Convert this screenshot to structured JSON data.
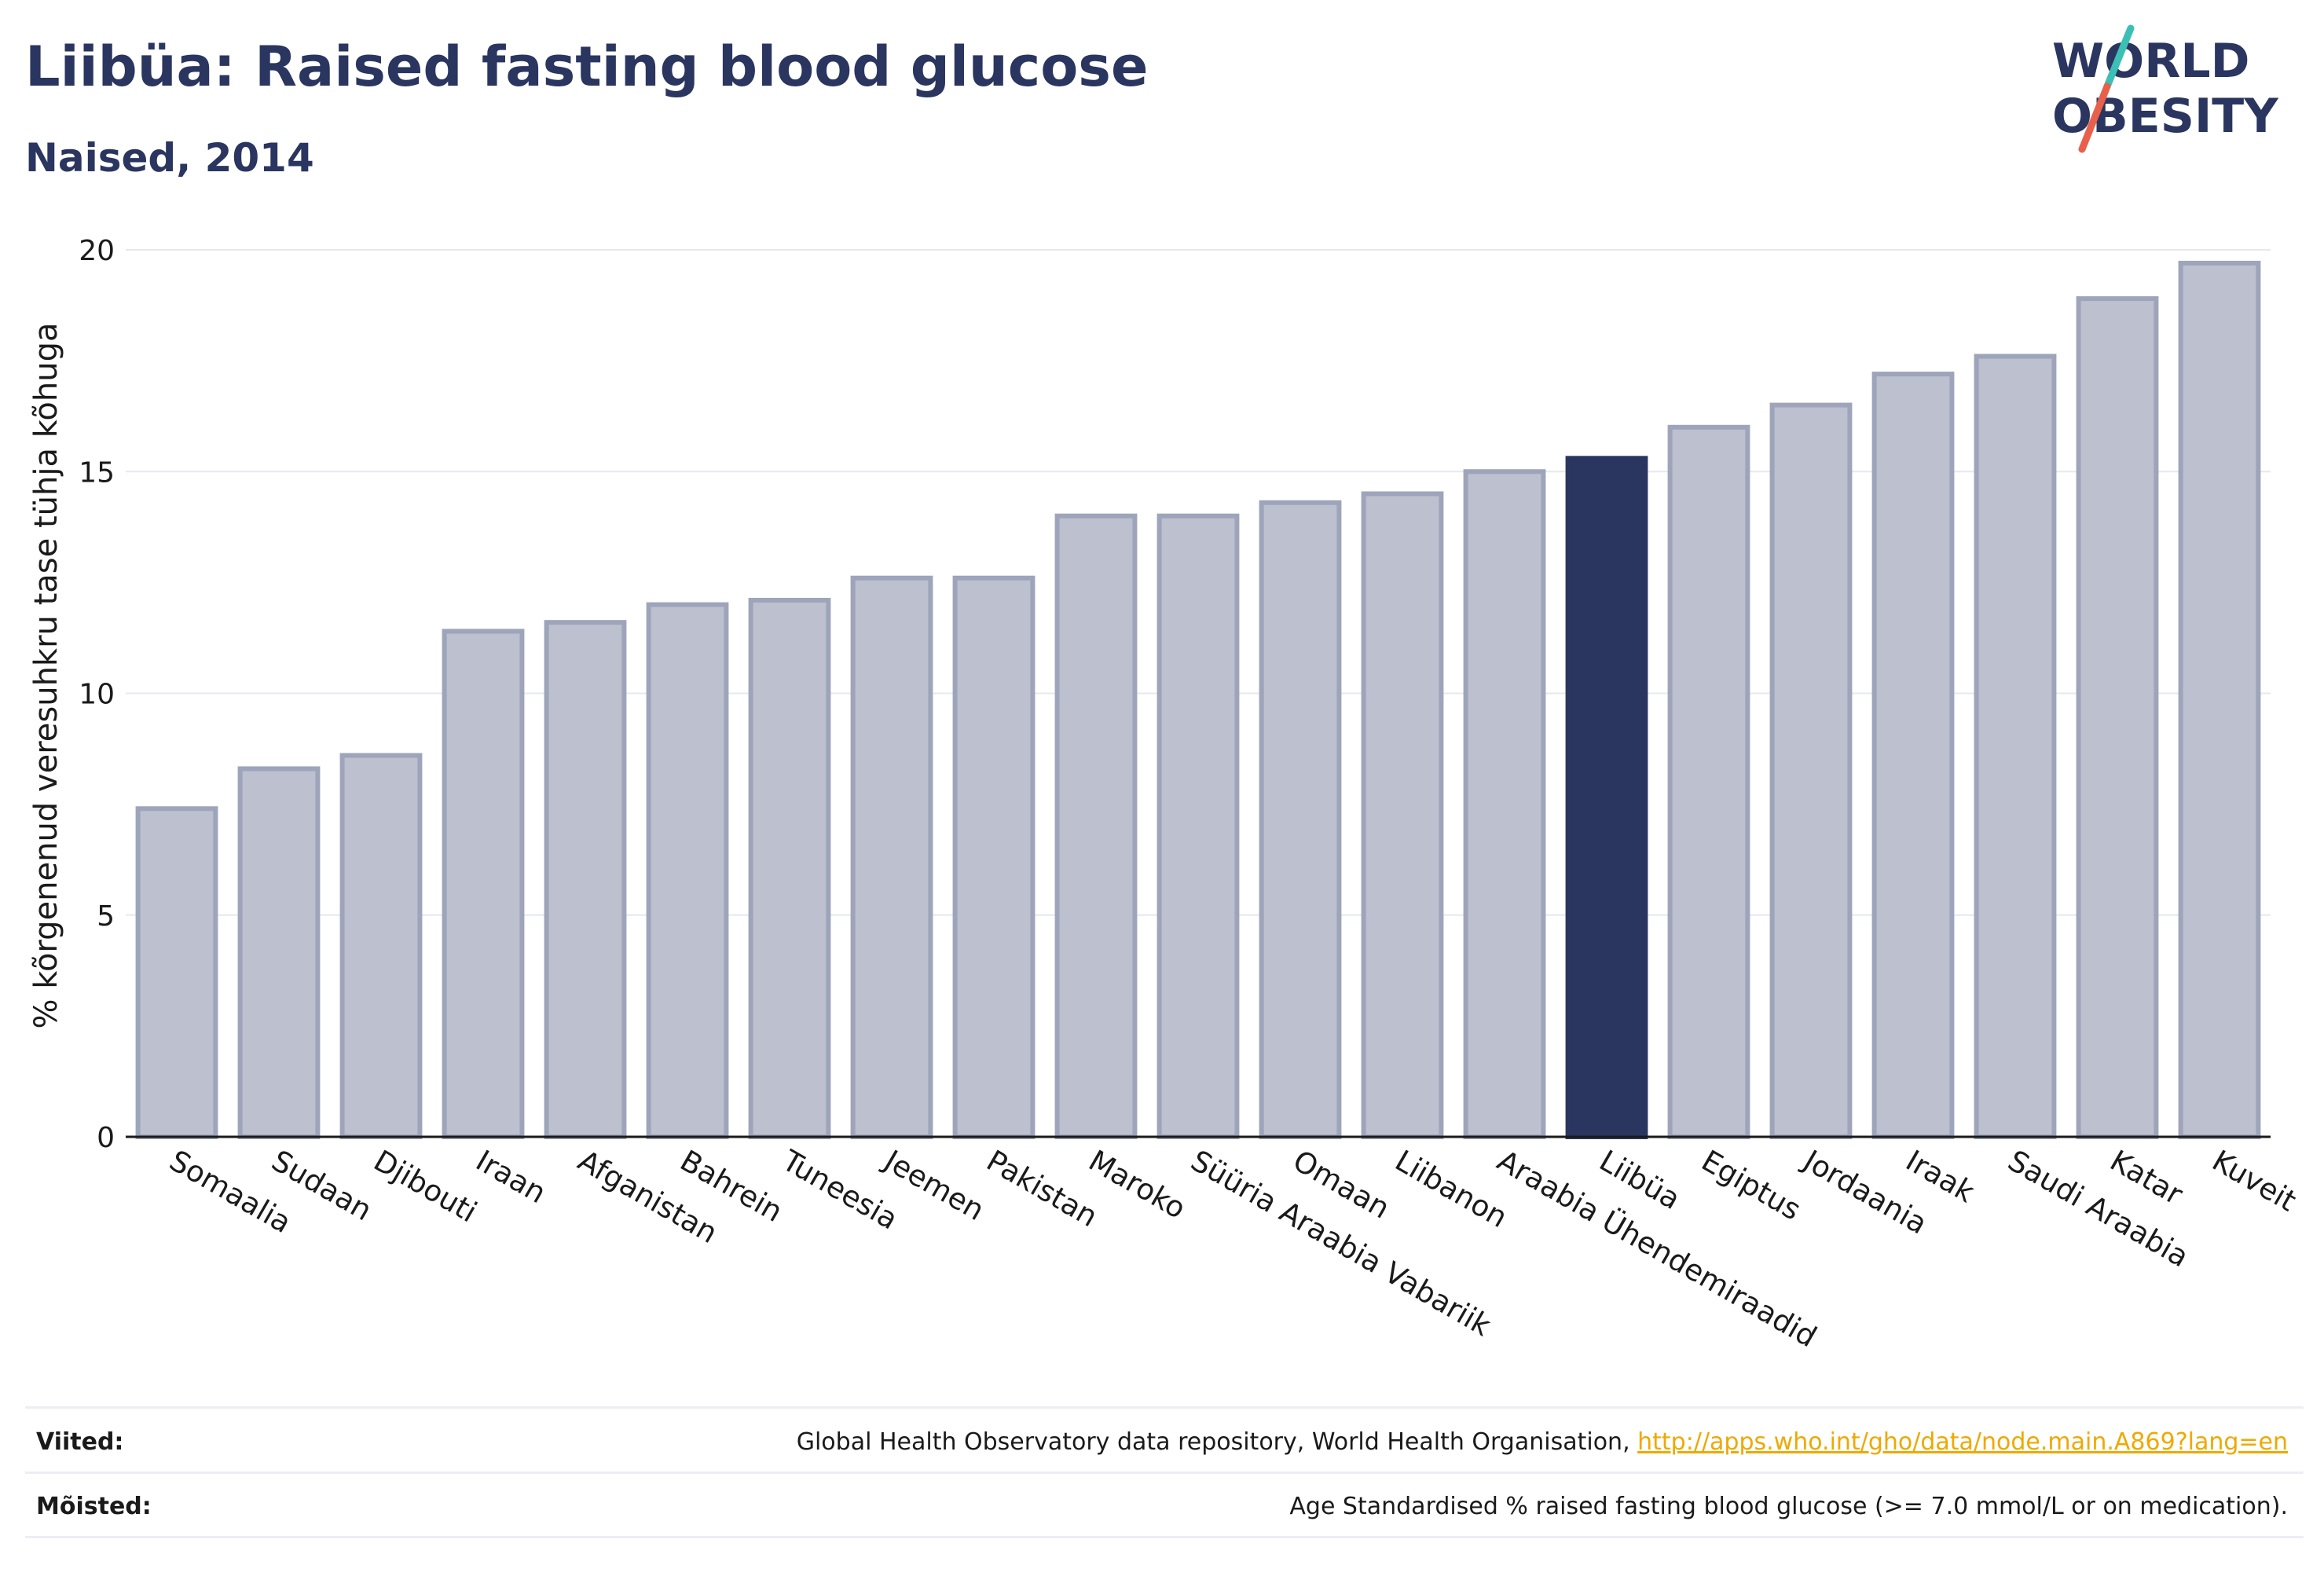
{
  "header": {
    "title": "Liibüa: Raised fasting blood glucose",
    "subtitle": "Naised, 2014"
  },
  "logo": {
    "line1": "WORLD",
    "line2": "OBESITY",
    "color": "#2a3560",
    "slash_colors": [
      "#3cbfb4",
      "#e8604c"
    ]
  },
  "colors": {
    "bar": "#bcc0cf",
    "bar_border": "#9ea4ba",
    "highlight": "#2a3560",
    "grid": "#e6e8ee",
    "axis": "#1a1a1a"
  },
  "chart_data": {
    "type": "bar",
    "ylabel": "% kõrgenenud veresuhkru tase tühja kõhuga",
    "ylim": [
      0,
      20
    ],
    "yticks": [
      0,
      5,
      10,
      15,
      20
    ],
    "grid": true,
    "highlight": "Liibüa",
    "categories": [
      "Somaalia",
      "Sudaan",
      "Djibouti",
      "Iraan",
      "Afganistan",
      "Bahrein",
      "Tuneesia",
      "Jeemen",
      "Pakistan",
      "Maroko",
      "Süüria Araabia Vabariik",
      "Omaan",
      "Liibanon",
      "Araabia Ühendemiraadid",
      "Liibüa",
      "Egiptus",
      "Jordaania",
      "Iraak",
      "Saudi Araabia",
      "Katar",
      "Kuveit"
    ],
    "values": [
      7.4,
      8.3,
      8.6,
      11.4,
      11.6,
      12.0,
      12.1,
      12.6,
      12.6,
      14.0,
      14.0,
      14.3,
      14.5,
      15.0,
      15.3,
      16.0,
      16.5,
      17.2,
      17.6,
      18.9,
      19.7
    ]
  },
  "footer": {
    "sources_label": "Viited:",
    "sources_text": "Global Health Observatory data repository, World Health Organisation, ",
    "sources_link": "http://apps.who.int/gho/data/node.main.A869?lang=en",
    "definitions_label": "Mõisted:",
    "definitions_text": "Age Standardised % raised fasting blood glucose (>= 7.0 mmol/L or on medication)."
  }
}
